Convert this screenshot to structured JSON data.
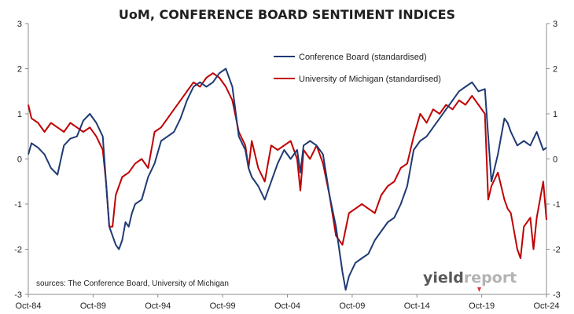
{
  "chart_data": {
    "type": "line",
    "title": "UoM, CONFERENCE BOARD SENTIMENT INDICES",
    "x_tick_labels": [
      "Oct-84",
      "Oct-89",
      "Oct-94",
      "Oct-99",
      "Oct-04",
      "Oct-09",
      "Oct-14",
      "Oct-19",
      "Oct-24"
    ],
    "xlim": [
      1984.75,
      2024.75
    ],
    "ylim": [
      -3,
      3
    ],
    "y_ticks": [
      "-3",
      "-2",
      "-1",
      "0",
      "1",
      "2",
      "3"
    ],
    "y2_ticks": [
      "-3",
      "-2",
      "-1",
      "0",
      "1",
      "2",
      "3"
    ],
    "grid": "none",
    "legend_position": "top-right",
    "annotation": "sources: The Conference Board, University of Michigan",
    "series": [
      {
        "name": "Conference Board (standardised)",
        "color": "#1f3a73",
        "x": [
          1984.75,
          1985.0,
          1985.5,
          1986.0,
          1986.5,
          1987.0,
          1987.5,
          1988.0,
          1988.5,
          1989.0,
          1989.5,
          1990.0,
          1990.5,
          1990.75,
          1991.0,
          1991.25,
          1991.5,
          1991.75,
          1992.0,
          1992.25,
          1992.5,
          1992.75,
          1993.0,
          1993.5,
          1994.0,
          1994.5,
          1995.0,
          1995.5,
          1996.0,
          1996.5,
          1997.0,
          1997.5,
          1998.0,
          1998.5,
          1999.0,
          1999.5,
          2000.0,
          2000.5,
          2001.0,
          2001.5,
          2001.75,
          2002.0,
          2002.5,
          2003.0,
          2003.25,
          2003.5,
          2004.0,
          2004.5,
          2005.0,
          2005.5,
          2005.75,
          2006.0,
          2006.5,
          2007.0,
          2007.5,
          2008.0,
          2008.5,
          2009.0,
          2009.25,
          2009.5,
          2010.0,
          2010.5,
          2011.0,
          2011.5,
          2012.0,
          2012.5,
          2013.0,
          2013.5,
          2014.0,
          2014.5,
          2015.0,
          2015.5,
          2016.0,
          2016.5,
          2017.0,
          2017.5,
          2018.0,
          2018.5,
          2019.0,
          2019.5,
          2020.0,
          2020.25,
          2020.5,
          2021.0,
          2021.5,
          2021.75,
          2022.0,
          2022.5,
          2023.0,
          2023.5,
          2024.0,
          2024.5,
          2024.75
        ],
        "values": [
          0.1,
          0.35,
          0.25,
          0.1,
          -0.2,
          -0.35,
          0.3,
          0.45,
          0.5,
          0.85,
          1.0,
          0.8,
          0.5,
          -0.5,
          -1.5,
          -1.7,
          -1.9,
          -2.0,
          -1.8,
          -1.4,
          -1.5,
          -1.2,
          -1.0,
          -0.9,
          -0.4,
          -0.1,
          0.4,
          0.5,
          0.6,
          0.9,
          1.3,
          1.6,
          1.7,
          1.6,
          1.7,
          1.9,
          2.0,
          1.6,
          0.5,
          0.2,
          -0.2,
          -0.4,
          -0.6,
          -0.9,
          -0.7,
          -0.5,
          -0.1,
          0.2,
          0.0,
          0.2,
          -0.3,
          0.3,
          0.4,
          0.3,
          0.1,
          -0.8,
          -1.5,
          -2.5,
          -2.9,
          -2.6,
          -2.3,
          -2.2,
          -2.1,
          -1.8,
          -1.6,
          -1.4,
          -1.3,
          -1.0,
          -0.6,
          0.2,
          0.4,
          0.5,
          0.7,
          0.9,
          1.1,
          1.3,
          1.5,
          1.6,
          1.7,
          1.5,
          1.55,
          0.5,
          -0.5,
          0.1,
          0.9,
          0.8,
          0.6,
          0.3,
          0.4,
          0.3,
          0.6,
          0.2,
          0.25
        ]
      },
      {
        "name": "University of Michigan (standardised)",
        "color": "#c00000",
        "x": [
          1984.75,
          1985.0,
          1985.5,
          1986.0,
          1986.5,
          1987.0,
          1987.5,
          1988.0,
          1988.5,
          1989.0,
          1989.5,
          1990.0,
          1990.5,
          1990.75,
          1991.0,
          1991.25,
          1991.5,
          1992.0,
          1992.5,
          1993.0,
          1993.5,
          1994.0,
          1994.5,
          1995.0,
          1995.5,
          1996.0,
          1996.5,
          1997.0,
          1997.5,
          1998.0,
          1998.5,
          1999.0,
          1999.5,
          2000.0,
          2000.5,
          2001.0,
          2001.5,
          2001.75,
          2002.0,
          2002.5,
          2003.0,
          2003.5,
          2004.0,
          2004.5,
          2005.0,
          2005.5,
          2005.75,
          2006.0,
          2006.5,
          2007.0,
          2007.5,
          2008.0,
          2008.5,
          2009.0,
          2009.5,
          2010.0,
          2010.5,
          2011.0,
          2011.5,
          2012.0,
          2012.5,
          2013.0,
          2013.5,
          2014.0,
          2014.5,
          2015.0,
          2015.5,
          2016.0,
          2016.5,
          2017.0,
          2017.5,
          2018.0,
          2018.5,
          2019.0,
          2019.5,
          2020.0,
          2020.25,
          2020.5,
          2021.0,
          2021.5,
          2021.75,
          2022.0,
          2022.5,
          2022.75,
          2023.0,
          2023.5,
          2023.75,
          2024.0,
          2024.5,
          2024.75
        ],
        "values": [
          1.2,
          0.9,
          0.8,
          0.6,
          0.8,
          0.7,
          0.6,
          0.8,
          0.7,
          0.6,
          0.7,
          0.5,
          0.2,
          -0.5,
          -1.5,
          -1.5,
          -0.8,
          -0.4,
          -0.3,
          -0.1,
          0.0,
          -0.2,
          0.6,
          0.7,
          0.9,
          1.1,
          1.3,
          1.5,
          1.7,
          1.6,
          1.8,
          1.9,
          1.8,
          1.6,
          1.3,
          0.6,
          0.3,
          -0.2,
          0.4,
          -0.2,
          -0.5,
          0.3,
          0.2,
          0.3,
          0.4,
          0.0,
          -0.7,
          0.2,
          0.0,
          0.3,
          -0.1,
          -0.8,
          -1.7,
          -1.9,
          -1.2,
          -1.1,
          -1.0,
          -1.1,
          -1.2,
          -0.8,
          -0.6,
          -0.5,
          -0.2,
          -0.1,
          0.5,
          1.0,
          0.8,
          1.1,
          1.0,
          1.2,
          1.1,
          1.3,
          1.2,
          1.4,
          1.2,
          1.0,
          -0.9,
          -0.6,
          -0.3,
          -0.9,
          -1.1,
          -1.2,
          -2.0,
          -2.2,
          -1.5,
          -1.3,
          -2.0,
          -1.3,
          -0.5,
          -1.35
        ]
      }
    ]
  },
  "brand": {
    "part1": "yield",
    "part2": "report",
    "accent": "#e03030"
  }
}
